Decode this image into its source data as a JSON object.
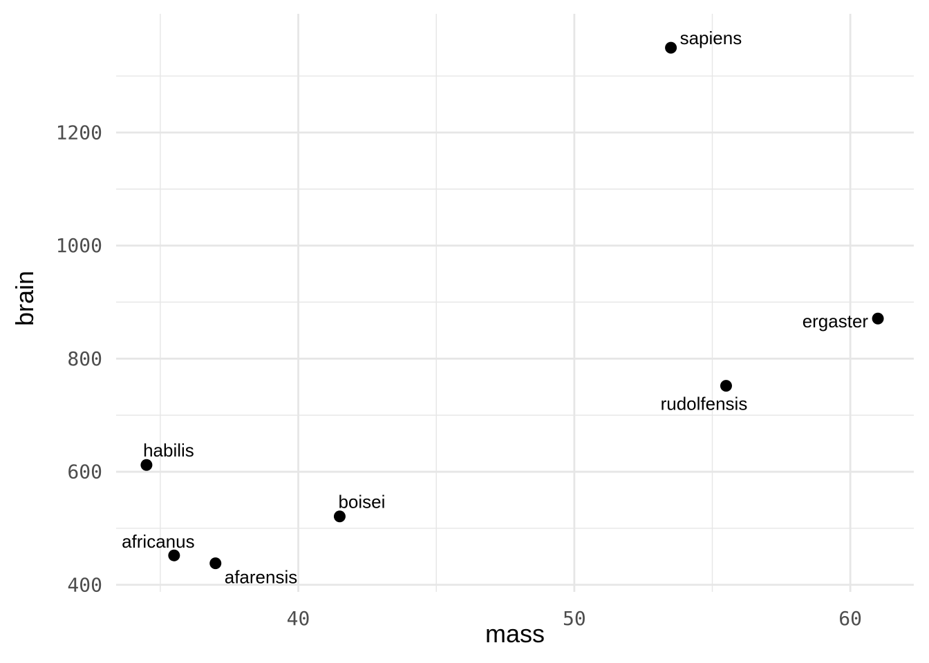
{
  "chart_data": {
    "type": "scatter",
    "title": "",
    "xlabel": "mass",
    "ylabel": "brain",
    "xlim": [
      33.4,
      62.3
    ],
    "ylim": [
      387.5,
      1410
    ],
    "x_ticks": [
      40,
      50,
      60
    ],
    "x_tick_labels": [
      "40",
      "50",
      "60"
    ],
    "y_ticks": [
      400,
      600,
      800,
      1000,
      1200
    ],
    "y_tick_labels": [
      "400",
      "600",
      "800",
      "1000",
      "1200"
    ],
    "grid": true,
    "point_color": "#000000",
    "grid_color": "#e6e6e6",
    "points": [
      {
        "label": "afarensis",
        "mass": 37.0,
        "brain": 438
      },
      {
        "label": "africanus",
        "mass": 35.5,
        "brain": 452
      },
      {
        "label": "habilis",
        "mass": 34.5,
        "brain": 612
      },
      {
        "label": "boisei",
        "mass": 41.5,
        "brain": 521
      },
      {
        "label": "rudolfensis",
        "mass": 55.5,
        "brain": 752
      },
      {
        "label": "ergaster",
        "mass": 61.0,
        "brain": 871
      },
      {
        "label": "sapiens",
        "mass": 53.5,
        "brain": 1350
      }
    ]
  }
}
